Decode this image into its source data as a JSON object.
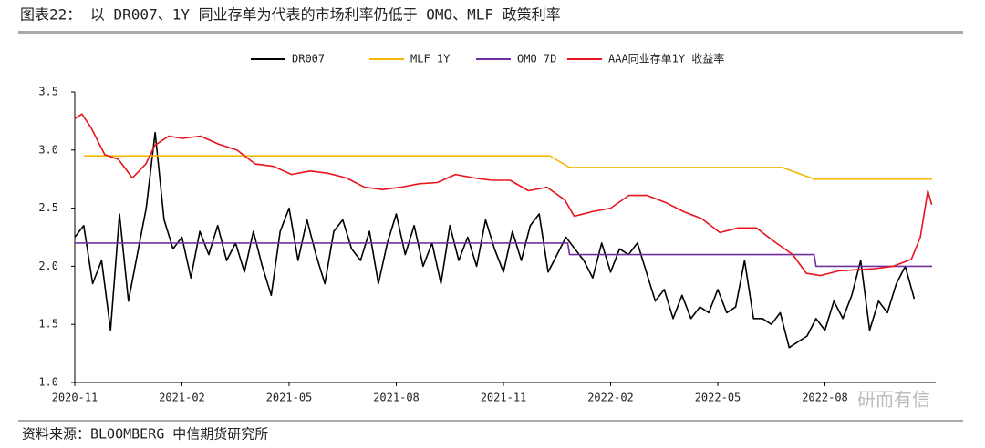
{
  "chart_data": {
    "type": "line",
    "title": "图表22： 以 DR007、1Y 同业存单为代表的市场利率仍低于 OMO、MLF 政策利率",
    "xlim": [
      0,
      24
    ],
    "xticks": [
      {
        "value": 0,
        "label": "2020-11"
      },
      {
        "value": 3,
        "label": "2021-02"
      },
      {
        "value": 6,
        "label": "2021-05"
      },
      {
        "value": 9,
        "label": "2021-08"
      },
      {
        "value": 12,
        "label": "2021-11"
      },
      {
        "value": 15,
        "label": "2022-02"
      },
      {
        "value": 18,
        "label": "2022-05"
      },
      {
        "value": 21,
        "label": "2022-08"
      }
    ],
    "ylim": [
      1.0,
      3.5
    ],
    "yticks": [
      {
        "value": 1,
        "label": "1.0"
      },
      1.5,
      {
        "value": 2,
        "label": "2.0"
      },
      2.5,
      {
        "value": 3,
        "label": "3.0"
      },
      3.5
    ],
    "grid": false,
    "legend": "top",
    "series": [
      {
        "name": "DR007",
        "color": "#000000",
        "x": [
          0,
          0.25,
          0.5,
          0.75,
          1,
          1.25,
          1.5,
          1.75,
          2,
          2.25,
          2.5,
          2.75,
          3,
          3.25,
          3.5,
          3.75,
          4,
          4.25,
          4.5,
          4.75,
          5,
          5.25,
          5.5,
          5.75,
          6,
          6.25,
          6.5,
          6.75,
          7,
          7.25,
          7.5,
          7.75,
          8,
          8.25,
          8.5,
          8.75,
          9,
          9.25,
          9.5,
          9.75,
          10,
          10.25,
          10.5,
          10.75,
          11,
          11.25,
          11.5,
          11.75,
          12,
          12.25,
          12.5,
          12.75,
          13,
          13.25,
          13.5,
          13.75,
          14,
          14.25,
          14.5,
          14.75,
          15,
          15.25,
          15.5,
          15.75,
          16,
          16.25,
          16.5,
          16.75,
          17,
          17.25,
          17.5,
          17.75,
          18,
          18.25,
          18.5,
          18.75,
          19,
          19.25,
          19.5,
          19.75,
          20,
          20.25,
          20.5,
          20.75,
          21,
          21.25,
          21.5,
          21.75,
          22,
          22.25,
          22.5,
          22.75,
          23,
          23.25,
          23.5
        ],
        "values": [
          2.25,
          2.35,
          1.85,
          2.05,
          1.45,
          2.45,
          1.7,
          2.1,
          2.5,
          3.15,
          2.4,
          2.15,
          2.25,
          1.9,
          2.3,
          2.1,
          2.35,
          2.05,
          2.2,
          1.95,
          2.3,
          2.0,
          1.75,
          2.3,
          2.5,
          2.05,
          2.4,
          2.1,
          1.85,
          2.3,
          2.4,
          2.15,
          2.05,
          2.3,
          1.85,
          2.2,
          2.45,
          2.1,
          2.35,
          2.0,
          2.2,
          1.85,
          2.35,
          2.05,
          2.25,
          2.0,
          2.4,
          2.15,
          1.95,
          2.3,
          2.05,
          2.35,
          2.45,
          1.95,
          2.1,
          2.25,
          2.15,
          2.05,
          1.9,
          2.2,
          1.95,
          2.15,
          2.1,
          2.2,
          1.95,
          1.7,
          1.8,
          1.55,
          1.75,
          1.55,
          1.65,
          1.6,
          1.8,
          1.6,
          1.65,
          2.05,
          1.55,
          1.55,
          1.5,
          1.6,
          1.3,
          1.35,
          1.4,
          1.55,
          1.45,
          1.7,
          1.55,
          1.75,
          2.05,
          1.45,
          1.7,
          1.6,
          1.85,
          2.0,
          1.72
        ]
      },
      {
        "name": "MLF 1Y",
        "color": "#f5b800",
        "x": [
          0.26,
          13.3,
          13.85,
          19.8,
          20.7,
          24
        ],
        "values": [
          2.95,
          2.95,
          2.85,
          2.85,
          2.75,
          2.75
        ]
      },
      {
        "name": "OMO 7D",
        "color": "#7030a0",
        "x": [
          0,
          13.8,
          13.85,
          20.7,
          20.75,
          24
        ],
        "values": [
          2.2,
          2.2,
          2.1,
          2.1,
          2.0,
          2.0
        ]
      },
      {
        "name": "AAA同业存单1Y 收益率",
        "color": "#e8141e",
        "x": [
          0,
          0.2,
          0.46,
          0.84,
          1.22,
          1.61,
          1.99,
          2.24,
          2.63,
          3.01,
          3.52,
          4.03,
          4.54,
          5.05,
          5.56,
          6.07,
          6.58,
          7.09,
          7.6,
          8.11,
          8.62,
          9.13,
          9.64,
          10.15,
          10.66,
          11.17,
          11.68,
          12.19,
          12.7,
          13.22,
          13.72,
          13.98,
          14.49,
          15,
          15.51,
          16.02,
          16.53,
          17.04,
          17.55,
          18.06,
          18.57,
          19.08,
          19.59,
          20.1,
          20.48,
          20.87,
          21.38,
          21.89,
          22.4,
          22.91,
          23.42,
          23.67,
          23.88,
          23.99
        ],
        "values": [
          3.27,
          3.31,
          3.19,
          2.96,
          2.92,
          2.76,
          2.88,
          3.04,
          3.12,
          3.1,
          3.12,
          3.05,
          3.0,
          2.88,
          2.86,
          2.79,
          2.82,
          2.8,
          2.76,
          2.68,
          2.66,
          2.68,
          2.71,
          2.72,
          2.79,
          2.76,
          2.74,
          2.74,
          2.65,
          2.68,
          2.57,
          2.43,
          2.47,
          2.5,
          2.61,
          2.61,
          2.55,
          2.47,
          2.41,
          2.29,
          2.33,
          2.33,
          2.21,
          2.1,
          1.94,
          1.92,
          1.96,
          1.97,
          1.98,
          2.0,
          2.06,
          2.25,
          2.65,
          2.53
        ]
      }
    ],
    "source": "资料来源：BLOOMBERG  中信期货研究所",
    "watermark": "研而有信"
  }
}
